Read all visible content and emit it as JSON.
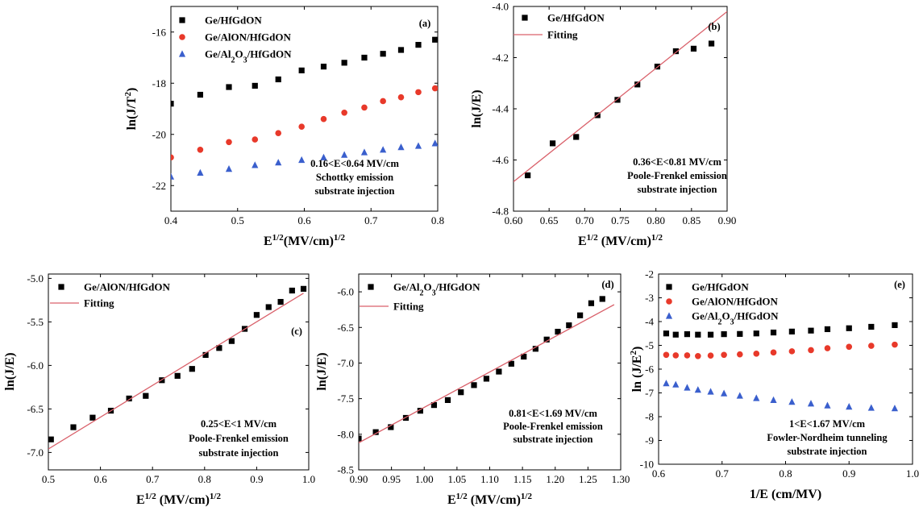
{
  "chart_data": [
    {
      "id": "a",
      "type": "scatter",
      "panel_label": "(a)",
      "xlabel": "E1/2(MV/cm)1/2",
      "ylabel": "ln(J/T2)",
      "xlim": [
        0.4,
        0.8
      ],
      "ylim": [
        -23,
        -15
      ],
      "xticks": [
        0.4,
        0.5,
        0.6,
        0.7,
        0.8
      ],
      "yticks": [
        -22,
        -20,
        -18,
        -16
      ],
      "xtick_labels": [
        "0.4",
        "0.5",
        "0.6",
        "0.7",
        "0.8"
      ],
      "ytick_labels": [
        "-22",
        "-20",
        "-18",
        "-16"
      ],
      "legend_position": "top-left",
      "annotations": [
        "0.16<E<0.64 MV/cm",
        "Schottky emission",
        "substrate injection"
      ],
      "series": [
        {
          "name": "Ge/HfGdON",
          "marker": "square",
          "color": "#000000",
          "x": [
            0.4,
            0.444,
            0.487,
            0.526,
            0.561,
            0.596,
            0.629,
            0.66,
            0.69,
            0.718,
            0.745,
            0.771,
            0.796
          ],
          "y": [
            -18.8,
            -18.45,
            -18.15,
            -18.1,
            -17.85,
            -17.5,
            -17.35,
            -17.2,
            -17.0,
            -16.85,
            -16.7,
            -16.5,
            -16.3
          ]
        },
        {
          "name": "Ge/AlON/HfGdON",
          "marker": "circle",
          "color": "#e8392a",
          "x": [
            0.4,
            0.444,
            0.487,
            0.526,
            0.561,
            0.596,
            0.629,
            0.66,
            0.69,
            0.718,
            0.745,
            0.771,
            0.796
          ],
          "y": [
            -20.9,
            -20.6,
            -20.3,
            -20.2,
            -19.95,
            -19.7,
            -19.4,
            -19.15,
            -18.95,
            -18.7,
            -18.55,
            -18.35,
            -18.2
          ]
        },
        {
          "name": "Ge/Al2O3/HfGdON",
          "marker": "triangle",
          "color": "#3a5fcd",
          "x": [
            0.4,
            0.444,
            0.487,
            0.526,
            0.561,
            0.596,
            0.629,
            0.66,
            0.69,
            0.718,
            0.745,
            0.771,
            0.796
          ],
          "y": [
            -21.65,
            -21.5,
            -21.35,
            -21.2,
            -21.1,
            -21.0,
            -20.9,
            -20.8,
            -20.7,
            -20.6,
            -20.5,
            -20.45,
            -20.35
          ]
        }
      ]
    },
    {
      "id": "b",
      "type": "scatter",
      "panel_label": "(b)",
      "xlabel": "E1/2 (MV/cm)1/2",
      "ylabel": "ln(J/E)",
      "xlim": [
        0.6,
        0.9
      ],
      "ylim": [
        -4.8,
        -4.0
      ],
      "xticks": [
        0.6,
        0.65,
        0.7,
        0.75,
        0.8,
        0.85,
        0.9
      ],
      "yticks": [
        -4.8,
        -4.6,
        -4.4,
        -4.2,
        -4.0
      ],
      "xtick_labels": [
        "0.60",
        "0.65",
        "0.70",
        "0.75",
        "0.80",
        "0.85",
        "0.90"
      ],
      "ytick_labels": [
        "-4.8",
        "-4.6",
        "-4.4",
        "-4.2",
        "-4.0"
      ],
      "legend_position": "top-left",
      "annotations": [
        "0.36<E<0.81 MV/cm",
        "Poole-Frenkel emission",
        "substrate injection"
      ],
      "series": [
        {
          "name": "Ge/HfGdON",
          "marker": "square",
          "color": "#000000",
          "x": [
            0.62,
            0.655,
            0.688,
            0.718,
            0.746,
            0.774,
            0.802,
            0.828,
            0.853,
            0.878
          ],
          "y": [
            -4.66,
            -4.535,
            -4.51,
            -4.425,
            -4.365,
            -4.305,
            -4.235,
            -4.175,
            -4.165,
            -4.145
          ]
        },
        {
          "name": "Fitting",
          "marker": "line",
          "color": "#d9606a",
          "x": [
            0.6,
            0.9
          ],
          "y": [
            -4.685,
            -4.02
          ]
        }
      ]
    },
    {
      "id": "c",
      "type": "scatter",
      "panel_label": "(c)",
      "xlabel": "E1/2 (MV/cm)1/2",
      "ylabel": "ln(J/E)",
      "xlim": [
        0.5,
        1.0
      ],
      "ylim": [
        -7.2,
        -4.95
      ],
      "xticks": [
        0.5,
        0.6,
        0.7,
        0.8,
        0.9,
        1.0
      ],
      "yticks": [
        -7.0,
        -6.5,
        -6.0,
        -5.5,
        -5.0
      ],
      "xtick_labels": [
        "0.5",
        "0.6",
        "0.7",
        "0.8",
        "0.9",
        "1.0"
      ],
      "ytick_labels": [
        "-7.0",
        "-6.5",
        "-6.0",
        "-5.5",
        "-5.0"
      ],
      "legend_position": "top-left",
      "annotations": [
        "0.25<E<1  MV/cm",
        "Poole-Frenkel emission",
        "substrate injection"
      ],
      "series": [
        {
          "name": "Ge/AlON/HfGdON",
          "marker": "square",
          "color": "#000000",
          "x": [
            0.505,
            0.548,
            0.585,
            0.62,
            0.655,
            0.687,
            0.718,
            0.748,
            0.776,
            0.802,
            0.828,
            0.852,
            0.877,
            0.9,
            0.923,
            0.946,
            0.968,
            0.99
          ],
          "y": [
            -6.85,
            -6.71,
            -6.6,
            -6.52,
            -6.38,
            -6.35,
            -6.17,
            -6.12,
            -6.04,
            -5.88,
            -5.8,
            -5.72,
            -5.58,
            -5.42,
            -5.33,
            -5.27,
            -5.14,
            -5.12
          ]
        },
        {
          "name": "Fitting",
          "marker": "line",
          "color": "#d9606a",
          "x": [
            0.5,
            0.99
          ],
          "y": [
            -6.96,
            -5.17
          ]
        }
      ]
    },
    {
      "id": "d",
      "type": "scatter",
      "panel_label": "(d)",
      "xlabel": "E1/2 (MV/cm)1/2",
      "ylabel": "ln(J/E)",
      "xlim": [
        0.9,
        1.3
      ],
      "ylim": [
        -8.5,
        -5.75
      ],
      "xticks": [
        0.9,
        0.95,
        1.0,
        1.05,
        1.1,
        1.15,
        1.2,
        1.25,
        1.3
      ],
      "yticks": [
        -8.5,
        -8.0,
        -7.5,
        -7.0,
        -6.5,
        -6.0
      ],
      "xtick_labels": [
        "0.90",
        "0.95",
        "1.00",
        "1.05",
        "1.10",
        "1.15",
        "1.20",
        "1.25",
        "1.30"
      ],
      "ytick_labels": [
        "-8.5",
        "-8.0",
        "-7.5",
        "-7.0",
        "-6.5",
        "-6.0"
      ],
      "legend_position": "top-left",
      "annotations": [
        "0.81<E<1.69 MV/cm",
        "Poole-Frenkel emission",
        "substrate injection"
      ],
      "series": [
        {
          "name": "Ge/Al2O3/HfGdON",
          "marker": "square",
          "color": "#000000",
          "x": [
            0.9,
            0.926,
            0.949,
            0.972,
            0.994,
            1.015,
            1.036,
            1.056,
            1.076,
            1.095,
            1.114,
            1.133,
            1.152,
            1.17,
            1.187,
            1.204,
            1.221,
            1.238,
            1.255,
            1.272
          ],
          "y": [
            -8.06,
            -7.97,
            -7.9,
            -7.77,
            -7.67,
            -7.59,
            -7.52,
            -7.41,
            -7.31,
            -7.22,
            -7.12,
            -7.01,
            -6.91,
            -6.8,
            -6.67,
            -6.56,
            -6.47,
            -6.33,
            -6.16,
            -6.1
          ]
        },
        {
          "name": "Fitting",
          "marker": "line",
          "color": "#d9606a",
          "x": [
            0.9,
            1.29
          ],
          "y": [
            -8.12,
            -6.18
          ]
        }
      ]
    },
    {
      "id": "e",
      "type": "scatter",
      "panel_label": "(e)",
      "xlabel": "1/E (cm/MV)",
      "ylabel": "ln (J/E2)",
      "xlim": [
        0.6,
        1.0
      ],
      "ylim": [
        -10,
        -2
      ],
      "xticks": [
        0.6,
        0.7,
        0.8,
        0.9,
        1.0
      ],
      "yticks": [
        -10,
        -9,
        -8,
        -7,
        -6,
        -5,
        -4,
        -3,
        -2
      ],
      "xtick_labels": [
        "0.6",
        "0.7",
        "0.8",
        "0.9",
        "1.0"
      ],
      "ytick_labels": [
        "-10",
        "-9",
        "-8",
        "-7",
        "-6",
        "-5",
        "-4",
        "-3",
        "-2"
      ],
      "legend_position": "top-left",
      "annotations": [
        "1<E<1.67 MV/cm",
        "Fowler-Nordheim tunneling",
        "substrate injection"
      ],
      "series": [
        {
          "name": "Ge/HfGdON",
          "marker": "square",
          "color": "#000000",
          "x": [
            0.612,
            0.627,
            0.645,
            0.662,
            0.682,
            0.703,
            0.728,
            0.754,
            0.781,
            0.81,
            0.84,
            0.866,
            0.9,
            0.935,
            0.972
          ],
          "y": [
            -4.5,
            -4.55,
            -4.53,
            -4.55,
            -4.55,
            -4.53,
            -4.52,
            -4.5,
            -4.46,
            -4.42,
            -4.38,
            -4.32,
            -4.28,
            -4.22,
            -4.15
          ]
        },
        {
          "name": "Ge/AlON/HfGdON",
          "marker": "circle",
          "color": "#e8392a",
          "x": [
            0.612,
            0.627,
            0.645,
            0.662,
            0.682,
            0.703,
            0.728,
            0.754,
            0.781,
            0.81,
            0.84,
            0.866,
            0.9,
            0.935,
            0.972
          ],
          "y": [
            -5.4,
            -5.42,
            -5.42,
            -5.45,
            -5.43,
            -5.4,
            -5.38,
            -5.35,
            -5.3,
            -5.25,
            -5.2,
            -5.12,
            -5.06,
            -5.02,
            -4.97
          ]
        },
        {
          "name": "Ge/Al2O3/HfGdON",
          "marker": "triangle",
          "color": "#3a5fcd",
          "x": [
            0.612,
            0.627,
            0.645,
            0.662,
            0.682,
            0.703,
            0.728,
            0.754,
            0.781,
            0.81,
            0.84,
            0.866,
            0.9,
            0.935,
            0.972
          ],
          "y": [
            -6.6,
            -6.65,
            -6.78,
            -6.87,
            -6.95,
            -7.02,
            -7.12,
            -7.22,
            -7.3,
            -7.38,
            -7.45,
            -7.53,
            -7.58,
            -7.63,
            -7.65
          ]
        }
      ]
    }
  ]
}
